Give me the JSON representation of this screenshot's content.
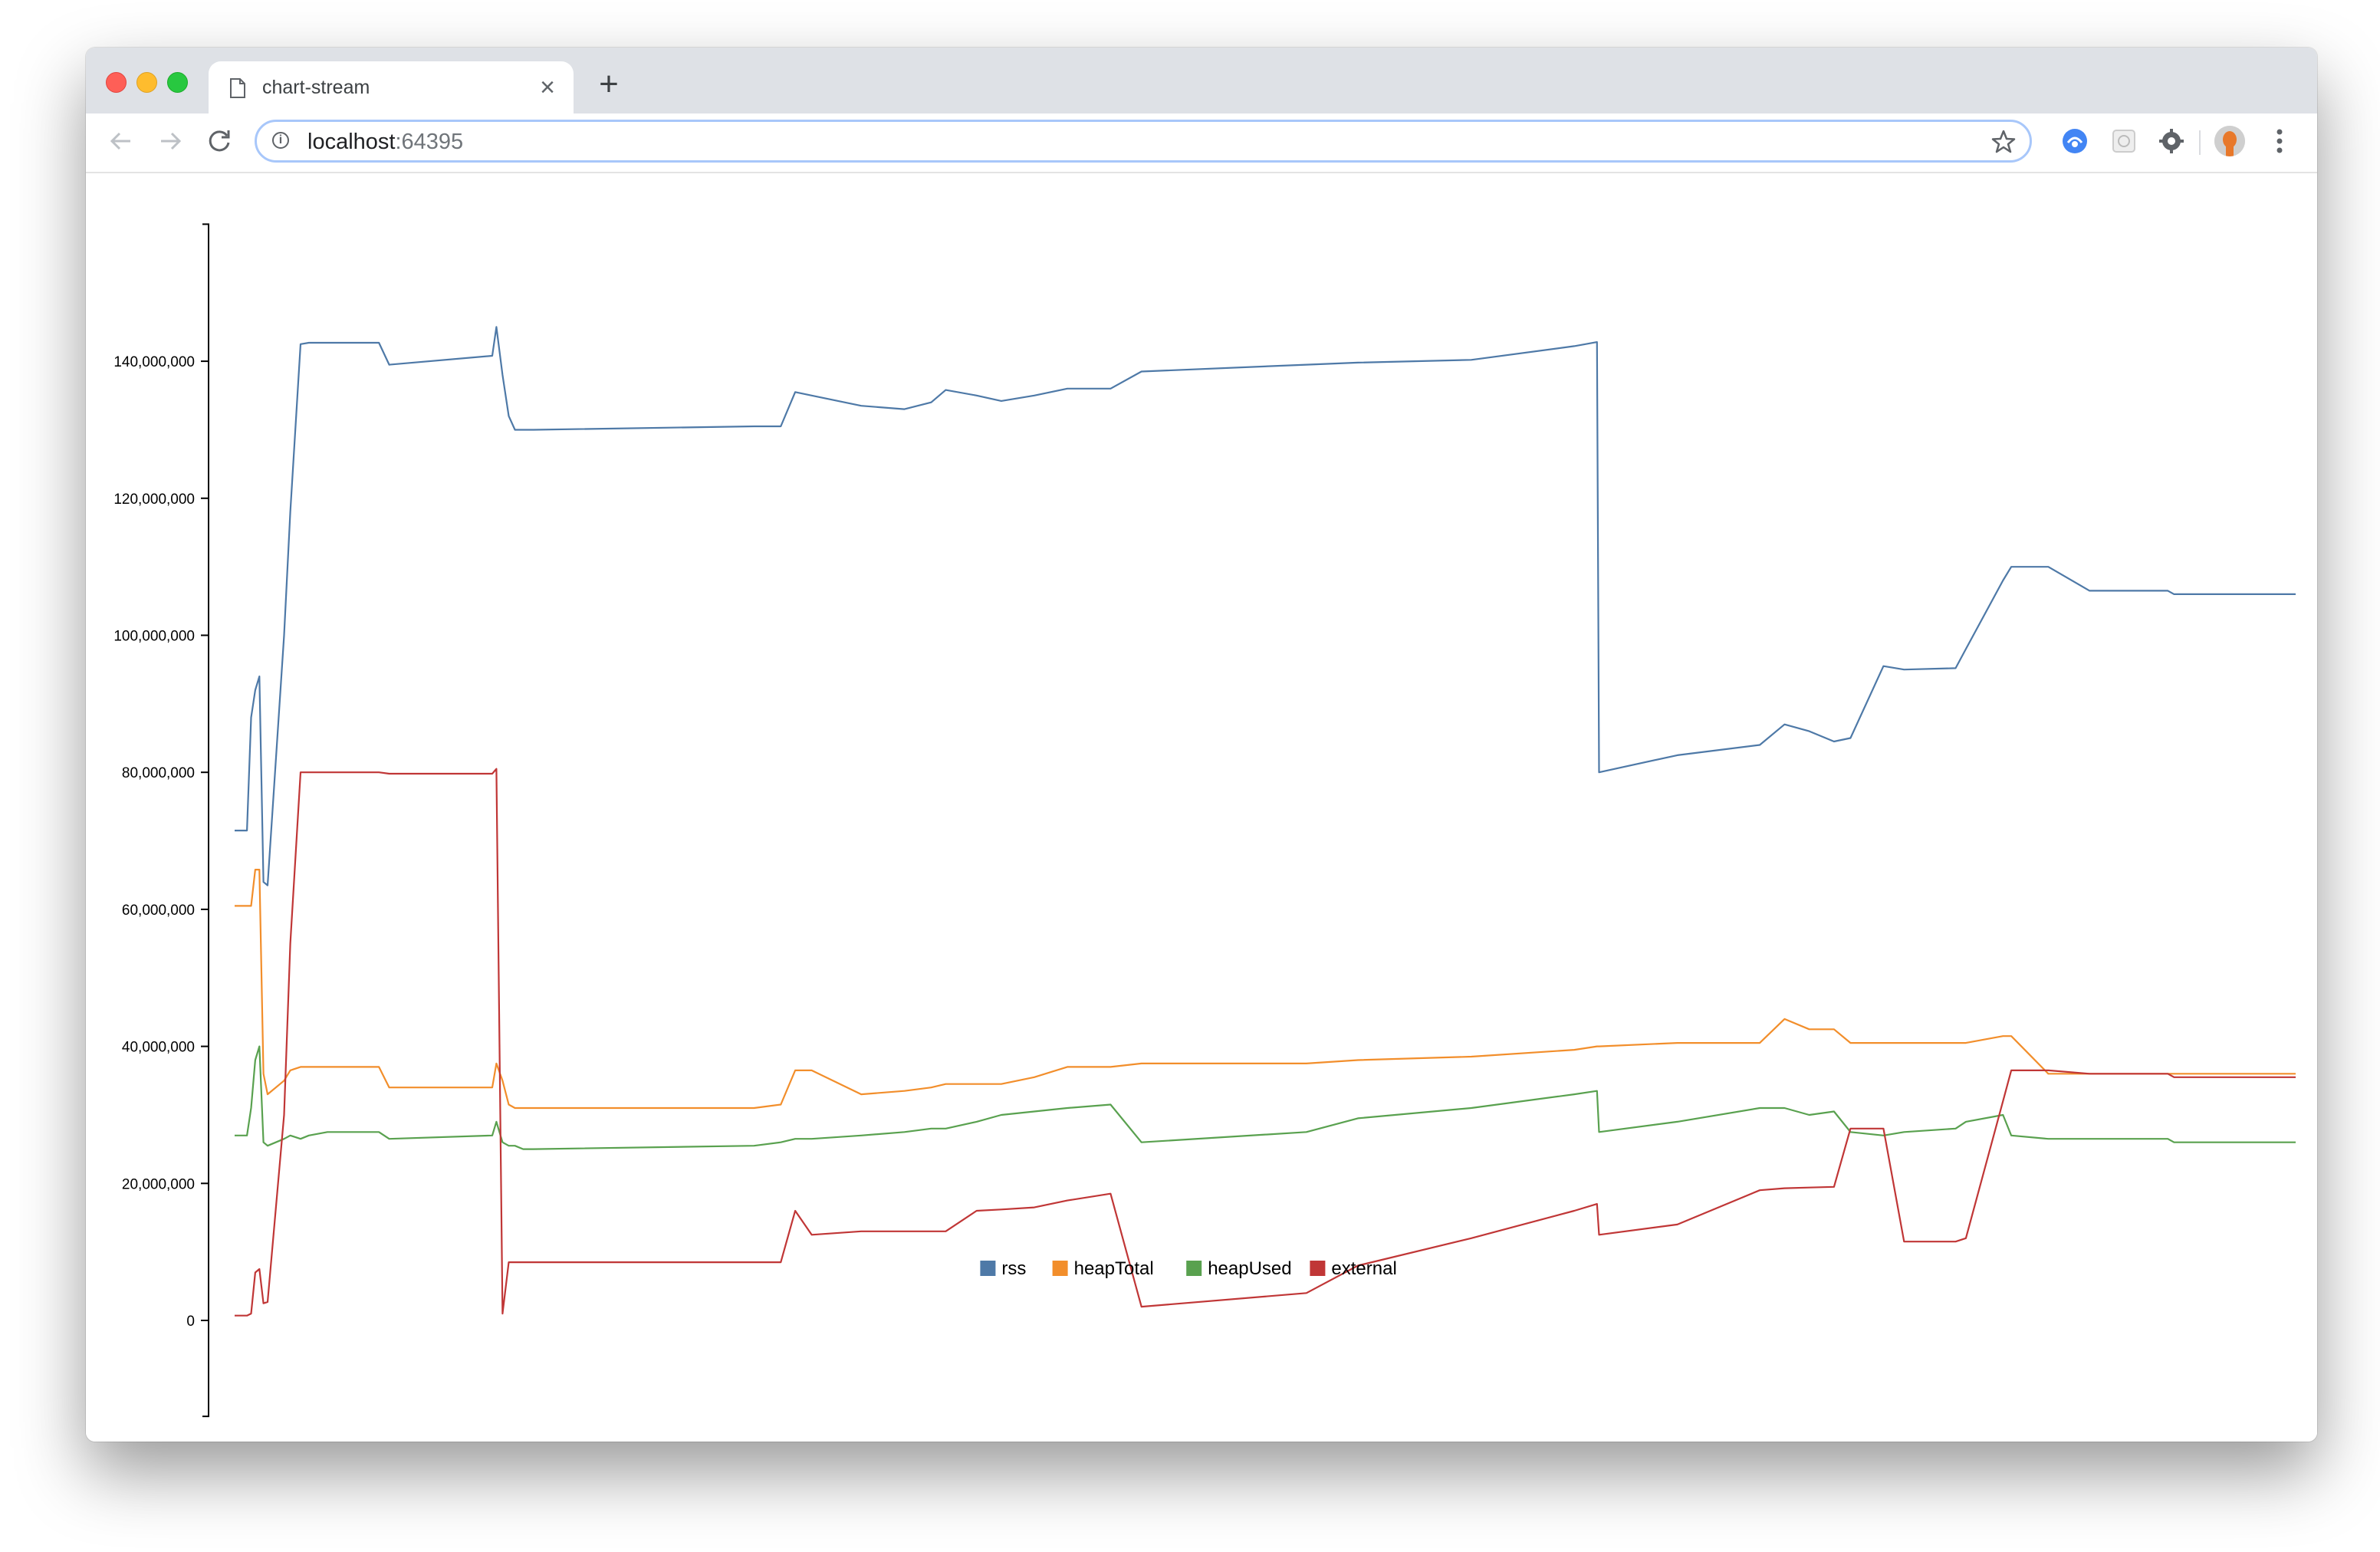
{
  "browser": {
    "tab_title": "chart-stream",
    "tab_close_label": "×",
    "new_tab_label": "+",
    "url_host": "localhost",
    "url_port": ":64395",
    "icons": {
      "back": "arrow-left-icon",
      "forward": "arrow-right-icon",
      "reload": "reload-icon",
      "info": "info-icon",
      "bookmark": "star-icon",
      "menu": "kebab-menu-icon"
    }
  },
  "chart_data": {
    "type": "line",
    "title": "",
    "xlabel": "",
    "ylabel": "",
    "ylim": [
      -14000000,
      160000000
    ],
    "y_ticks": [
      0,
      20000000,
      40000000,
      60000000,
      80000000,
      100000000,
      120000000,
      140000000
    ],
    "y_tick_labels": [
      "0",
      "20,000,000",
      "40,000,000",
      "60,000,000",
      "80,000,000",
      "100,000,000",
      "120,000,000",
      "140,000,000"
    ],
    "x_range": [
      0,
      100
    ],
    "grid": false,
    "legend": "bottom-center",
    "x": [
      0,
      0.6,
      0.8,
      1.0,
      1.2,
      1.4,
      1.6,
      2.4,
      2.7,
      3.2,
      3.6,
      4.5,
      7.0,
      7.5,
      12.5,
      12.7,
      13.0,
      13.3,
      13.6,
      14.0,
      14.5,
      25.2,
      26.5,
      27.2,
      28.0,
      30.4,
      32.5,
      33.8,
      34.5,
      36.0,
      37.2,
      38.8,
      40.4,
      42.5,
      44.0,
      52.0,
      54.5,
      60.0,
      65.0,
      66.1,
      66.2,
      70.0,
      74.0,
      75.2,
      76.4,
      77.6,
      78.4,
      80.0,
      81.0,
      83.5,
      84.0,
      85.8,
      86.2,
      88.0,
      90.0,
      93.8,
      94.1,
      100.0
    ],
    "series": [
      {
        "name": "rss",
        "color": "#4e79a7",
        "values": [
          71500000,
          71500000,
          88000000,
          92000000,
          94000000,
          64000000,
          63500000,
          100000000,
          118000000,
          142500000,
          142700000,
          142700000,
          142700000,
          139500000,
          140800000,
          145000000,
          138000000,
          132000000,
          130000000,
          130000000,
          130000000,
          130500000,
          130500000,
          135500000,
          135000000,
          133500000,
          133000000,
          134000000,
          135800000,
          135000000,
          134200000,
          135000000,
          136000000,
          136000000,
          138500000,
          139500000,
          139800000,
          140200000,
          142200000,
          142800000,
          80000000,
          82500000,
          84000000,
          87000000,
          86000000,
          84500000,
          85000000,
          95500000,
          95000000,
          95200000,
          98000000,
          108000000,
          110000000,
          110000000,
          106500000,
          106500000,
          106000000,
          106000000
        ]
      },
      {
        "name": "heapTotal",
        "color": "#f28e2b",
        "values": [
          60500000,
          60500000,
          60500000,
          65800000,
          65800000,
          36000000,
          33000000,
          35000000,
          36500000,
          37000000,
          37000000,
          37000000,
          37000000,
          34000000,
          34000000,
          37500000,
          35000000,
          31500000,
          31000000,
          31000000,
          31000000,
          31000000,
          31500000,
          36500000,
          36500000,
          33000000,
          33500000,
          34000000,
          34500000,
          34500000,
          34500000,
          35500000,
          37000000,
          37000000,
          37500000,
          37500000,
          38000000,
          38500000,
          39500000,
          40000000,
          40000000,
          40500000,
          40500000,
          44000000,
          42500000,
          42500000,
          40500000,
          40500000,
          40500000,
          40500000,
          40500000,
          41500000,
          41500000,
          36000000,
          36000000,
          36000000,
          36000000,
          36000000
        ]
      },
      {
        "name": "heapUsed",
        "color": "#59a14f",
        "values": [
          27000000,
          27000000,
          31000000,
          38000000,
          40000000,
          26000000,
          25500000,
          26500000,
          27000000,
          26500000,
          27000000,
          27500000,
          27500000,
          26500000,
          27000000,
          29000000,
          26000000,
          25500000,
          25500000,
          25000000,
          25000000,
          25500000,
          26000000,
          26500000,
          26500000,
          27000000,
          27500000,
          28000000,
          28000000,
          29000000,
          30000000,
          30500000,
          31000000,
          31500000,
          26000000,
          27500000,
          29500000,
          31000000,
          33000000,
          33500000,
          27500000,
          29000000,
          31000000,
          31000000,
          30000000,
          30500000,
          27500000,
          27000000,
          27500000,
          28000000,
          29000000,
          30000000,
          27000000,
          26500000,
          26500000,
          26500000,
          26000000,
          26000000
        ]
      },
      {
        "name": "external",
        "color": "#c03636",
        "values": [
          700000,
          700000,
          1000000,
          7000000,
          7500000,
          2500000,
          2700000,
          30000000,
          55000000,
          80000000,
          80000000,
          80000000,
          80000000,
          79800000,
          79800000,
          80500000,
          1000000,
          8500000,
          8500000,
          8500000,
          8500000,
          8500000,
          8500000,
          16000000,
          12500000,
          13000000,
          13000000,
          13000000,
          13000000,
          16000000,
          16200000,
          16500000,
          17500000,
          18500000,
          2000000,
          4000000,
          8000000,
          12000000,
          16000000,
          17000000,
          12500000,
          14000000,
          19000000,
          19300000,
          19400000,
          19500000,
          28000000,
          28000000,
          11500000,
          11500000,
          12000000,
          32000000,
          36500000,
          36500000,
          36000000,
          36000000,
          35500000,
          35500000
        ]
      }
    ]
  }
}
